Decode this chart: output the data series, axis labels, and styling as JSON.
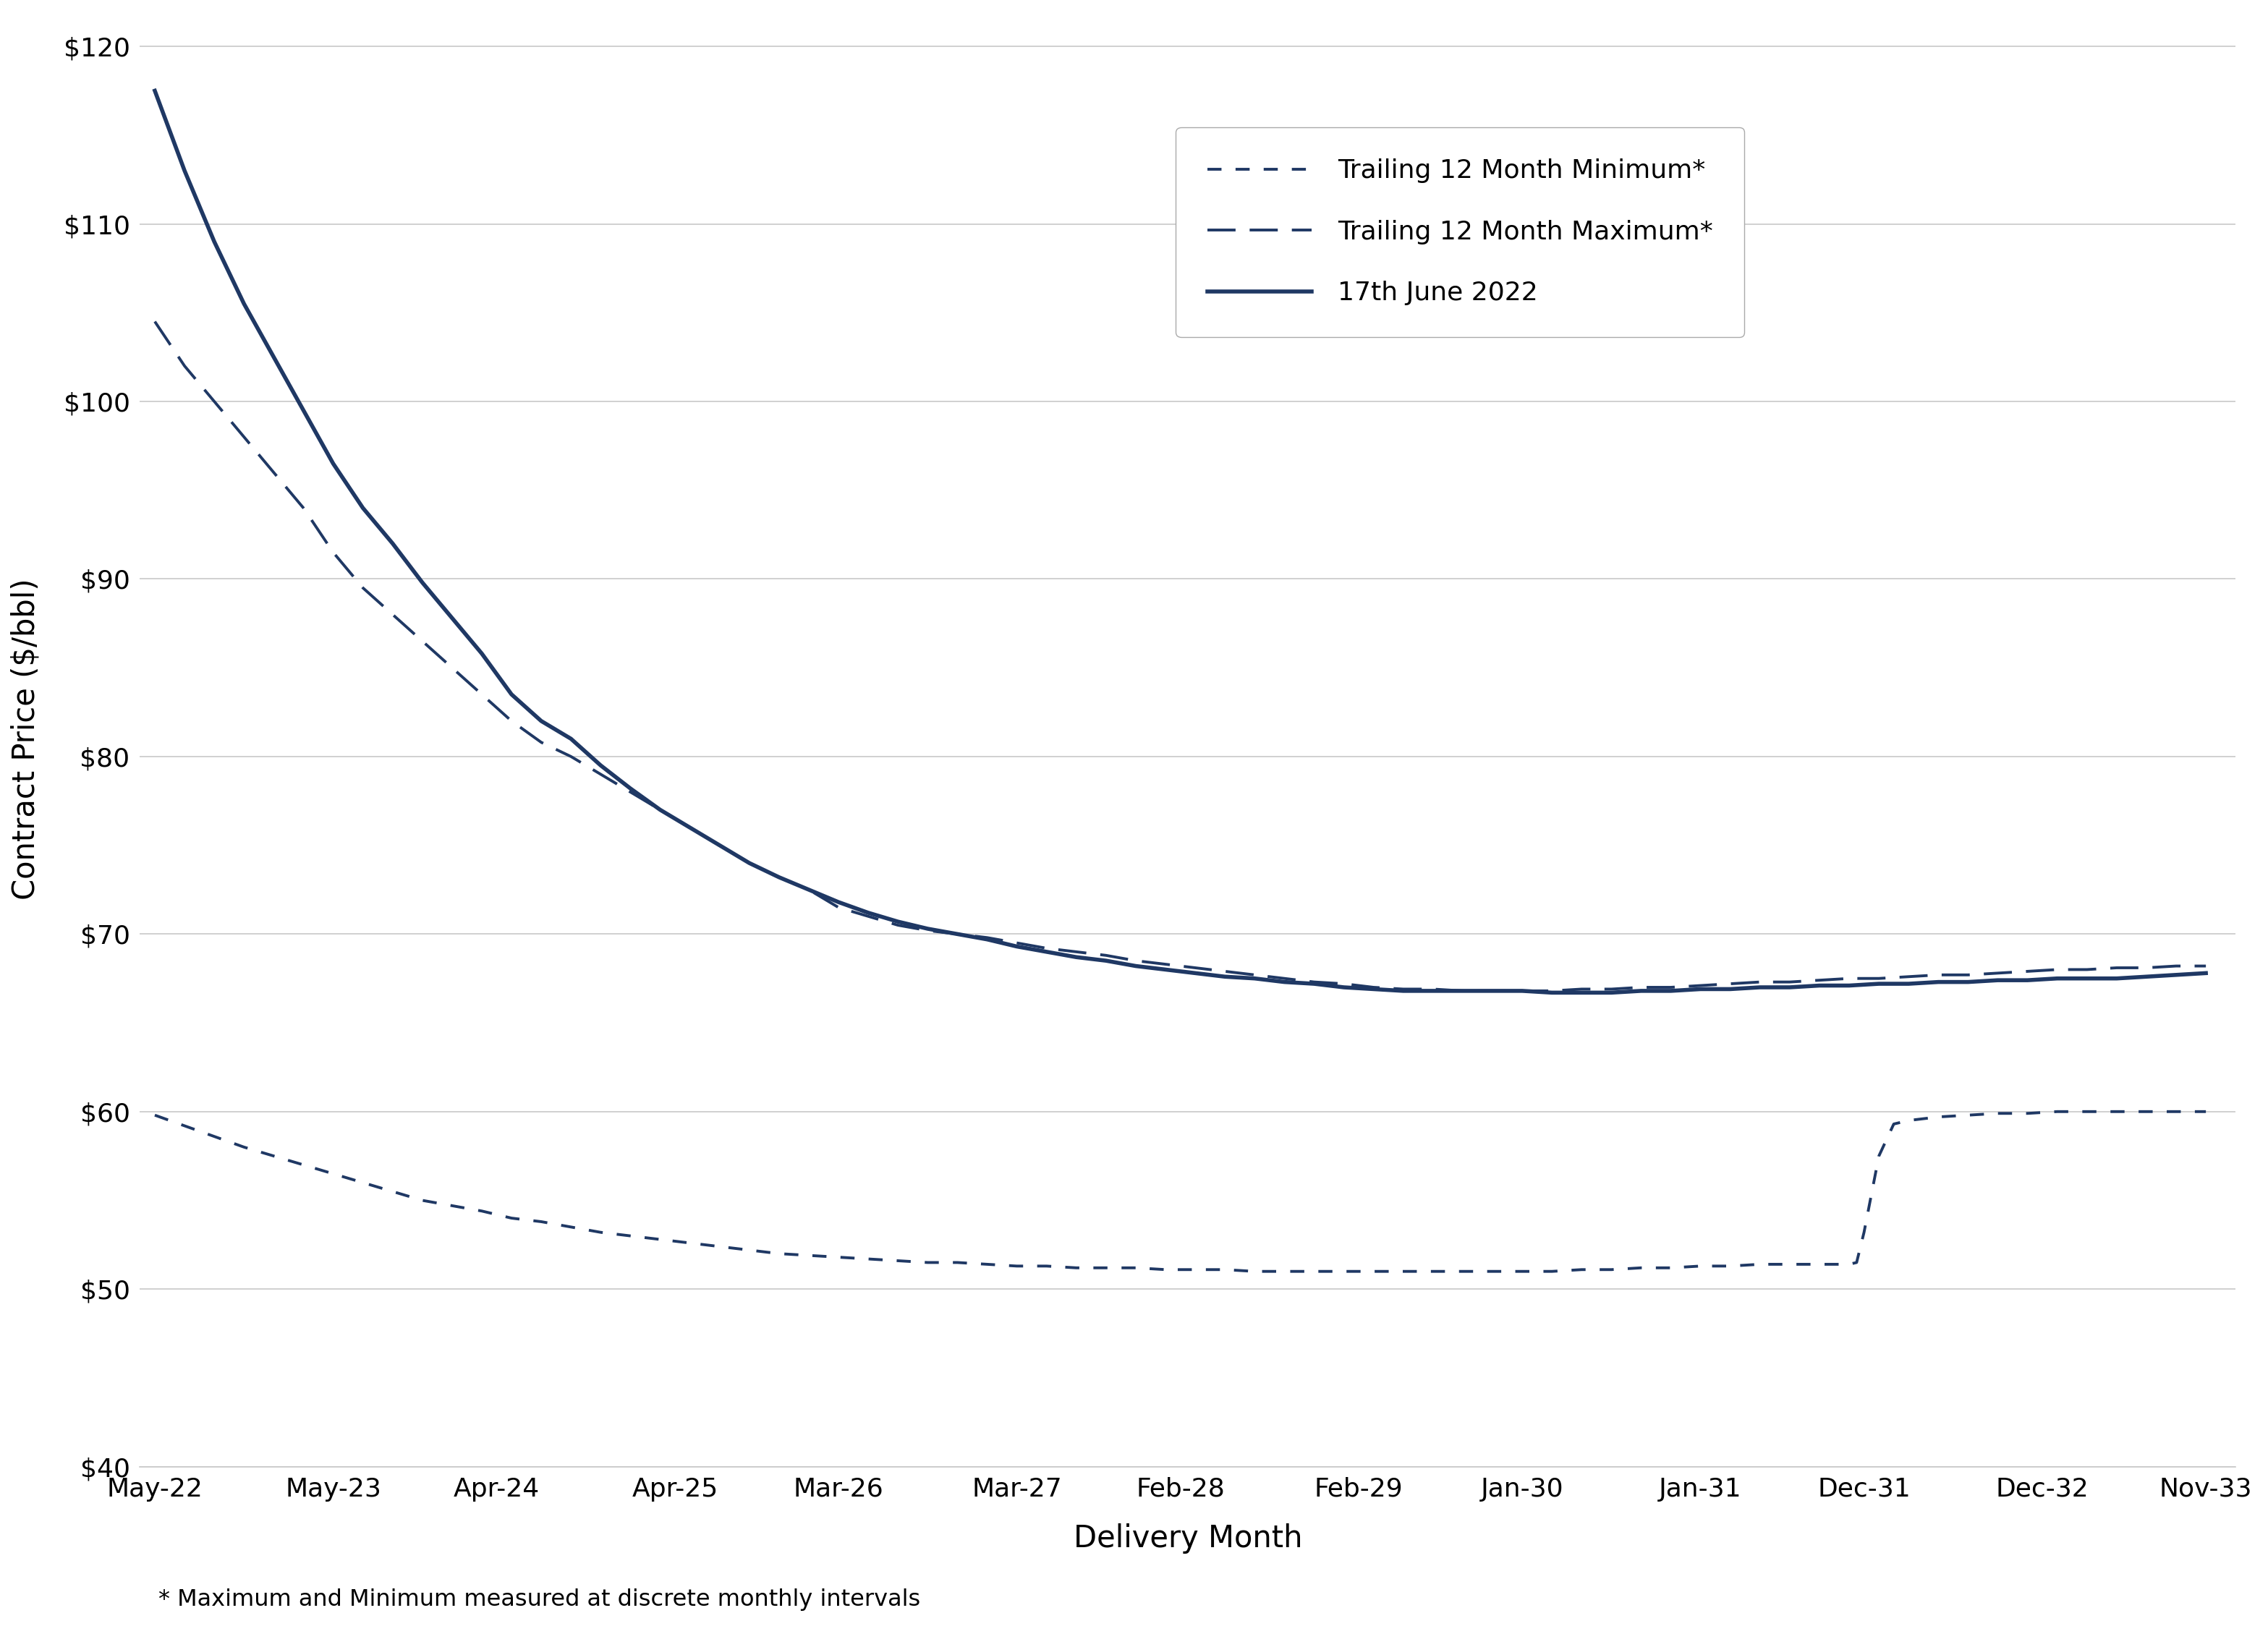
{
  "color": "#1f3864",
  "background": "#ffffff",
  "ylabel": "Contract Price ($/bbl)",
  "xlabel": "Delivery Month",
  "footnote": "* Maximum and Minimum measured at discrete monthly intervals",
  "ylim": [
    40,
    122
  ],
  "yticks": [
    40,
    50,
    60,
    70,
    80,
    90,
    100,
    110,
    120
  ],
  "legend_labels": [
    "Trailing 12 Month Minimum*",
    "Trailing 12 Month Maximum*",
    "17th June 2022"
  ],
  "xtick_labels": [
    "May-22",
    "May-23",
    "Apr-24",
    "Apr-25",
    "Mar-26",
    "Mar-27",
    "Feb-28",
    "Feb-29",
    "Jan-30",
    "Jan-31",
    "Dec-31",
    "Dec-32",
    "Nov-33"
  ],
  "xtick_positions": [
    0,
    12,
    23,
    35,
    46,
    58,
    69,
    81,
    92,
    104,
    115,
    127,
    138
  ],
  "spot_x": [
    0,
    2,
    4,
    6,
    8,
    10,
    12,
    14,
    16,
    18,
    20,
    22,
    24,
    26,
    28,
    30,
    32,
    34,
    36,
    38,
    40,
    42,
    44,
    46,
    48,
    50,
    52,
    54,
    56,
    58,
    60,
    62,
    64,
    66,
    68,
    70,
    72,
    74,
    76,
    78,
    80,
    82,
    84,
    86,
    88,
    90,
    92,
    94,
    96,
    98,
    100,
    102,
    104,
    106,
    108,
    110,
    112,
    114,
    116,
    118,
    120,
    122,
    124,
    126,
    128,
    130,
    132,
    134,
    136,
    138
  ],
  "spot_y": [
    117.5,
    113.0,
    109.0,
    105.5,
    102.5,
    99.5,
    96.5,
    94.0,
    92.0,
    89.8,
    87.8,
    85.8,
    83.5,
    82.0,
    81.0,
    79.5,
    78.2,
    77.0,
    76.0,
    75.0,
    74.0,
    73.2,
    72.5,
    71.8,
    71.2,
    70.7,
    70.3,
    70.0,
    69.7,
    69.3,
    69.0,
    68.7,
    68.5,
    68.2,
    68.0,
    67.8,
    67.6,
    67.5,
    67.3,
    67.2,
    67.0,
    66.9,
    66.8,
    66.8,
    66.8,
    66.8,
    66.8,
    66.7,
    66.7,
    66.7,
    66.8,
    66.8,
    66.9,
    66.9,
    67.0,
    67.0,
    67.1,
    67.1,
    67.2,
    67.2,
    67.3,
    67.3,
    67.4,
    67.4,
    67.5,
    67.5,
    67.5,
    67.6,
    67.7,
    67.8
  ],
  "trail_max_x": [
    0,
    2,
    4,
    6,
    8,
    10,
    12,
    14,
    16,
    18,
    20,
    22,
    24,
    26,
    28,
    30,
    32,
    34,
    36,
    38,
    40,
    42,
    44,
    46,
    48,
    50,
    52,
    54,
    56,
    58,
    60,
    62,
    64,
    66,
    68,
    70,
    72,
    74,
    76,
    78,
    80,
    82,
    84,
    86,
    88,
    90,
    92,
    94,
    96,
    98,
    100,
    102,
    104,
    106,
    108,
    110,
    112,
    114,
    116,
    118,
    120,
    122,
    124,
    126,
    128,
    130,
    132,
    134,
    136,
    138
  ],
  "trail_max_y": [
    104.5,
    102.0,
    100.0,
    98.0,
    96.0,
    94.0,
    91.5,
    89.5,
    88.0,
    86.5,
    85.0,
    83.5,
    82.0,
    80.8,
    80.0,
    79.0,
    78.0,
    77.0,
    76.0,
    75.0,
    74.0,
    73.2,
    72.5,
    71.5,
    71.0,
    70.5,
    70.2,
    70.0,
    69.8,
    69.5,
    69.2,
    69.0,
    68.8,
    68.5,
    68.3,
    68.1,
    67.9,
    67.7,
    67.5,
    67.3,
    67.2,
    67.0,
    66.9,
    66.9,
    66.8,
    66.8,
    66.8,
    66.8,
    66.9,
    66.9,
    67.0,
    67.0,
    67.1,
    67.2,
    67.3,
    67.3,
    67.4,
    67.5,
    67.5,
    67.6,
    67.7,
    67.7,
    67.8,
    67.9,
    68.0,
    68.0,
    68.1,
    68.1,
    68.2,
    68.2
  ],
  "trail_min_x": [
    0,
    2,
    4,
    6,
    8,
    10,
    12,
    14,
    16,
    18,
    20,
    22,
    24,
    26,
    28,
    30,
    32,
    34,
    36,
    38,
    40,
    42,
    44,
    46,
    48,
    50,
    52,
    54,
    56,
    58,
    60,
    62,
    64,
    66,
    68,
    70,
    72,
    74,
    76,
    78,
    80,
    82,
    84,
    86,
    88,
    90,
    92,
    94,
    96,
    98,
    100,
    102,
    104,
    106,
    108,
    110,
    112,
    114,
    114.5,
    115,
    116,
    117,
    118,
    120,
    122,
    124,
    126,
    128,
    130,
    132,
    134,
    136,
    138
  ],
  "trail_min_y": [
    59.8,
    59.2,
    58.6,
    58.0,
    57.5,
    57.0,
    56.5,
    56.0,
    55.5,
    55.0,
    54.7,
    54.4,
    54.0,
    53.8,
    53.5,
    53.2,
    53.0,
    52.8,
    52.6,
    52.4,
    52.2,
    52.0,
    51.9,
    51.8,
    51.7,
    51.6,
    51.5,
    51.5,
    51.4,
    51.3,
    51.3,
    51.2,
    51.2,
    51.2,
    51.1,
    51.1,
    51.1,
    51.0,
    51.0,
    51.0,
    51.0,
    51.0,
    51.0,
    51.0,
    51.0,
    51.0,
    51.0,
    51.0,
    51.1,
    51.1,
    51.2,
    51.2,
    51.3,
    51.3,
    51.4,
    51.4,
    51.4,
    51.4,
    51.5,
    53.2,
    57.5,
    59.3,
    59.5,
    59.7,
    59.8,
    59.9,
    59.9,
    60.0,
    60.0,
    60.0,
    60.0,
    60.0,
    60.0
  ]
}
